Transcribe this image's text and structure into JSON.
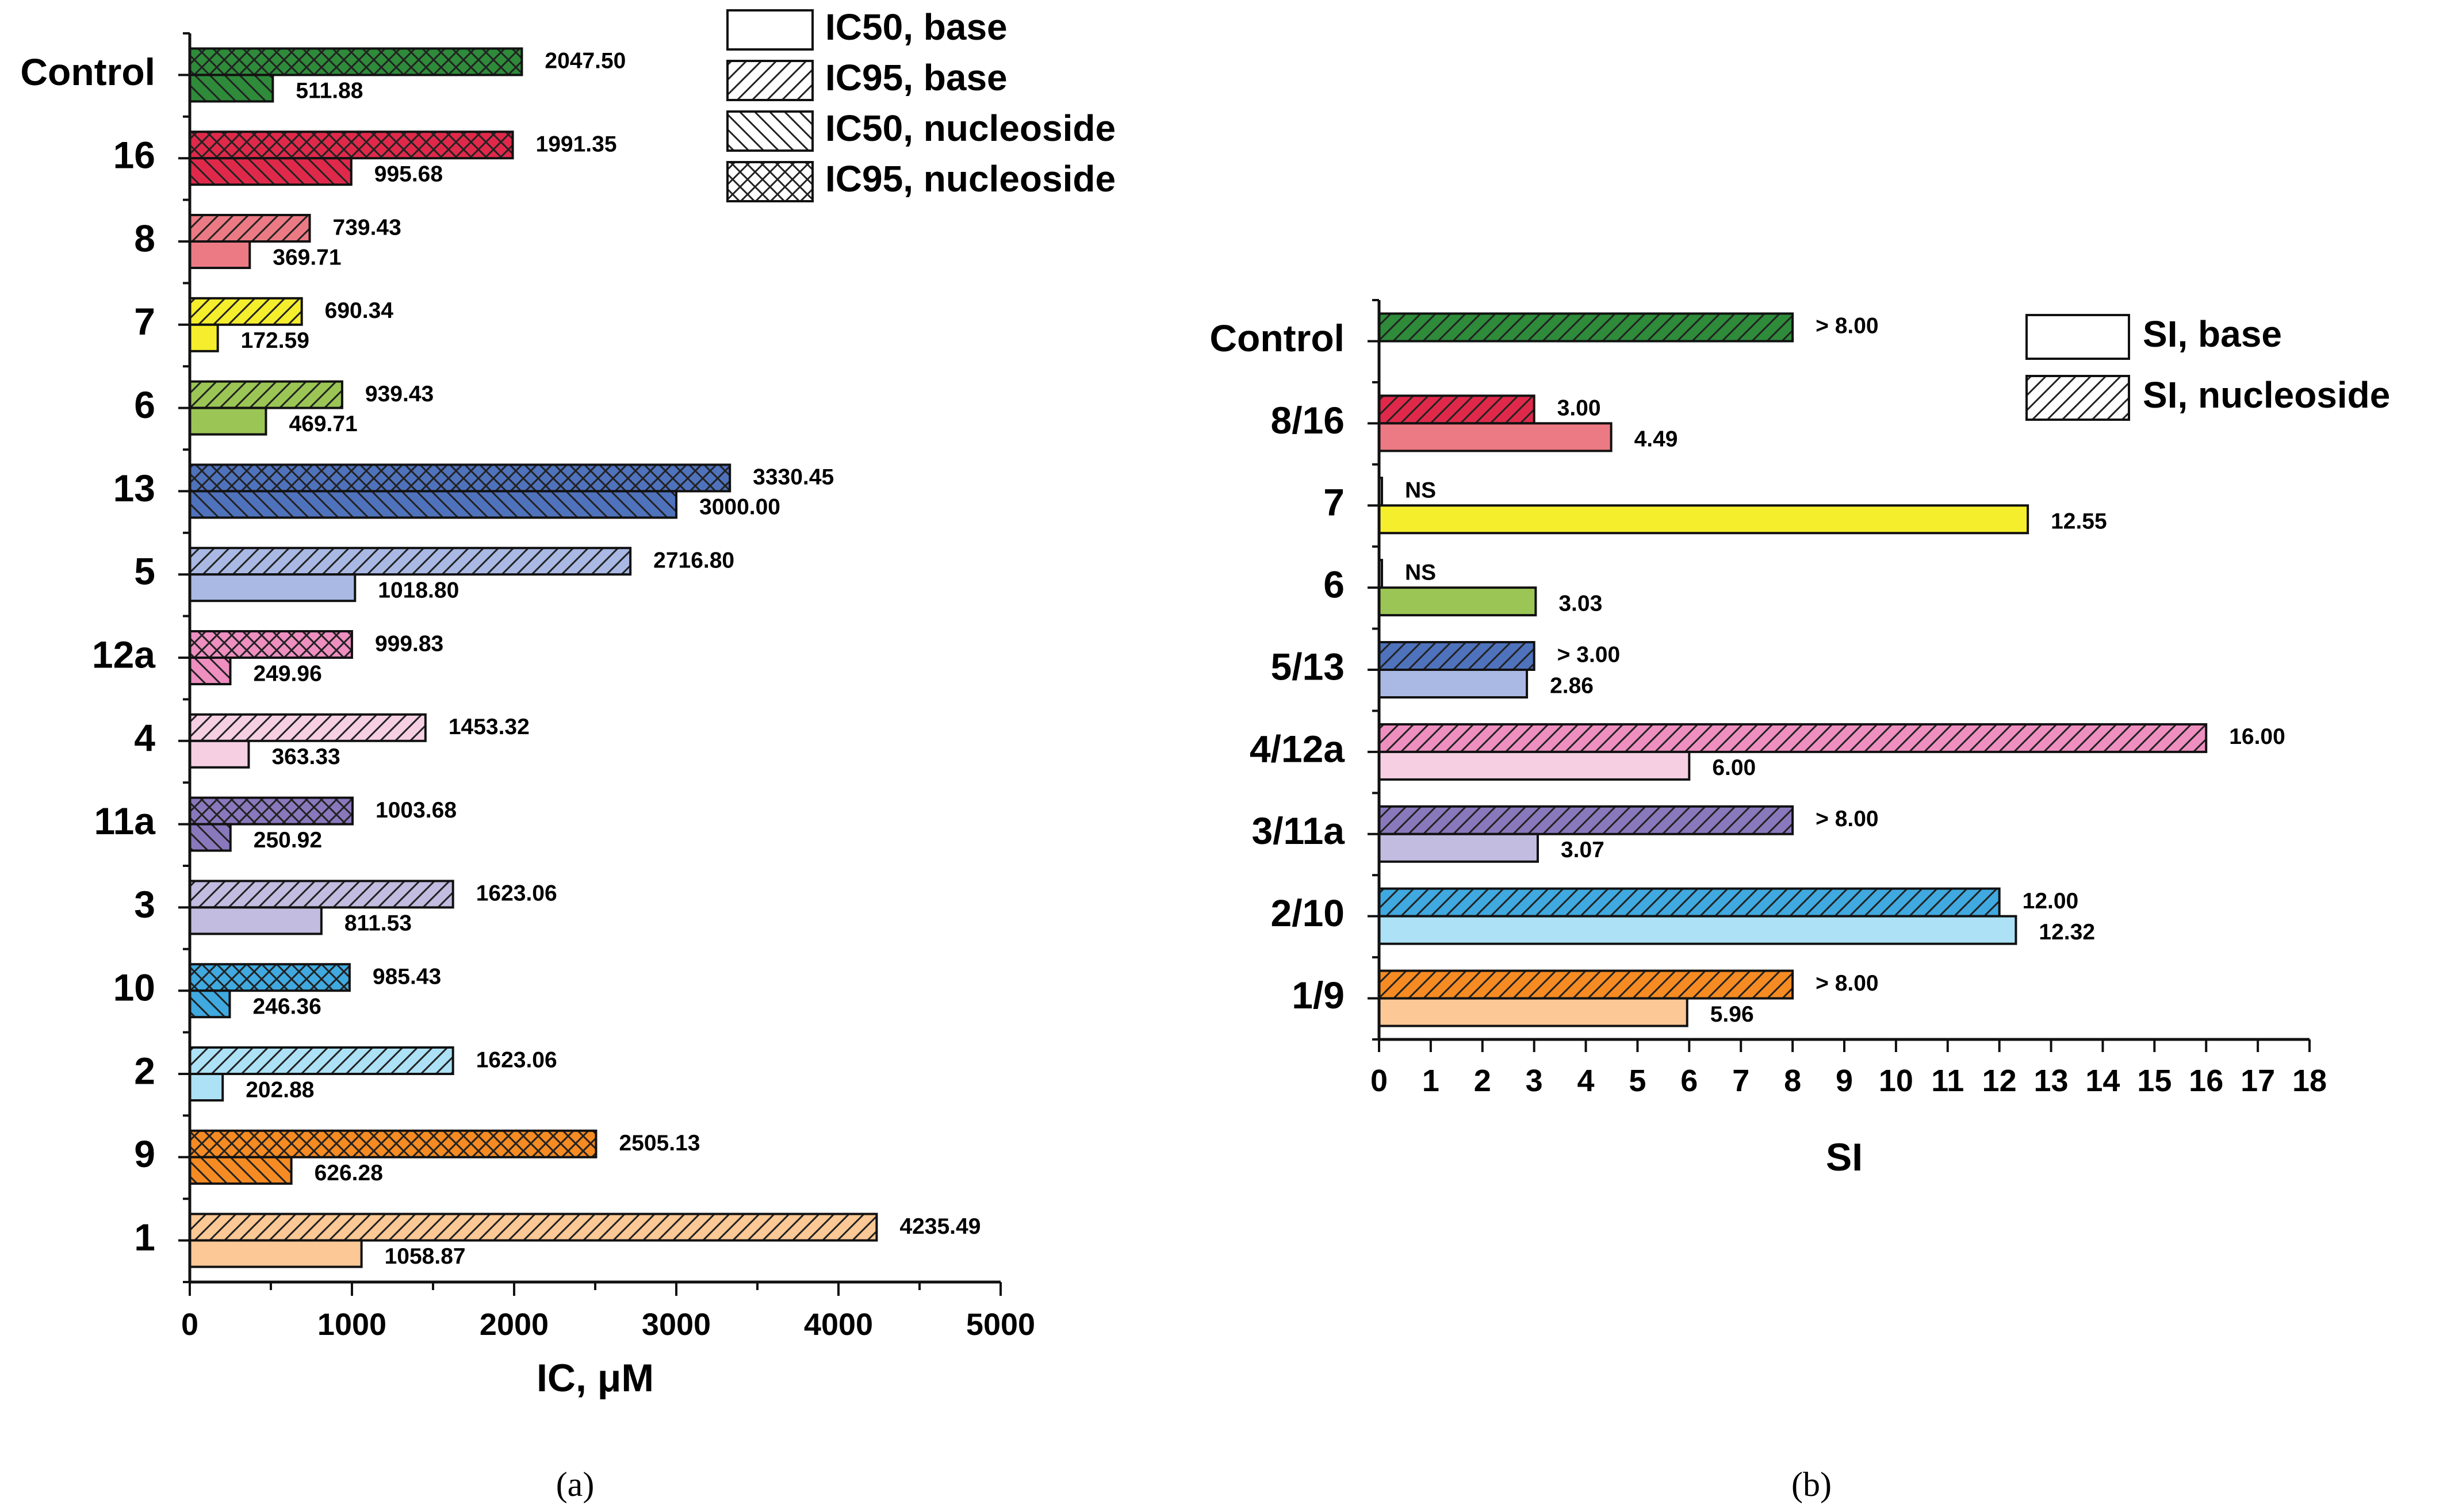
{
  "chart_data": [
    {
      "type": "bar",
      "orientation": "horizontal",
      "panel_label": "a",
      "xlabel": "IC, μM",
      "xlim": [
        0,
        5000
      ],
      "xticks": [
        0,
        1000,
        2000,
        3000,
        4000,
        5000
      ],
      "legend_position": "top-right",
      "legend": [
        {
          "label": "IC50, base",
          "pattern": "none"
        },
        {
          "label": "IC95, base",
          "pattern": "hatch"
        },
        {
          "label": "IC50, nucleoside",
          "pattern": "backhatch"
        },
        {
          "label": "IC95, nucleoside",
          "pattern": "cross"
        }
      ],
      "rows": [
        {
          "category": "Control",
          "color": "#2e8b3a",
          "type": "nucleoside",
          "ic95": 2047.5,
          "ic95_label": "2047.50",
          "ic50": 511.88,
          "ic50_label": "511.88"
        },
        {
          "category": "16",
          "color": "#e0294a",
          "type": "nucleoside",
          "ic95": 1991.35,
          "ic95_label": "1991.35",
          "ic50": 995.68,
          "ic50_label": "995.68"
        },
        {
          "category": "8",
          "color": "#ec7a84",
          "type": "base",
          "ic95": 739.43,
          "ic95_label": "739.43",
          "ic50": 369.71,
          "ic50_label": "369.71"
        },
        {
          "category": "7",
          "color": "#f5ee2c",
          "type": "base",
          "ic95": 690.34,
          "ic95_label": "690.34",
          "ic50": 172.59,
          "ic50_label": "172.59"
        },
        {
          "category": "6",
          "color": "#9bc655",
          "type": "base",
          "ic95": 939.43,
          "ic95_label": "939.43",
          "ic50": 469.71,
          "ic50_label": "469.71"
        },
        {
          "category": "13",
          "color": "#4f72bd",
          "type": "nucleoside",
          "ic95": 3330.45,
          "ic95_label": "3330.45",
          "ic50": 3000.0,
          "ic50_label": "3000.00"
        },
        {
          "category": "5",
          "color": "#a9b9e4",
          "type": "base",
          "ic95": 2716.8,
          "ic95_label": "2716.80",
          "ic50": 1018.8,
          "ic50_label": "1018.80"
        },
        {
          "category": "12a",
          "color": "#ee8fc0",
          "type": "nucleoside",
          "ic95": 999.83,
          "ic95_label": "999.83",
          "ic50": 249.96,
          "ic50_label": "249.96"
        },
        {
          "category": "4",
          "color": "#f6cfe3",
          "type": "base",
          "ic95": 1453.32,
          "ic95_label": "1453.32",
          "ic50": 363.33,
          "ic50_label": "363.33"
        },
        {
          "category": "11a",
          "color": "#8a78bd",
          "type": "nucleoside",
          "ic95": 1003.68,
          "ic95_label": "1003.68",
          "ic50": 250.92,
          "ic50_label": "250.92"
        },
        {
          "category": "3",
          "color": "#c2bce0",
          "type": "base",
          "ic95": 1623.06,
          "ic95_label": "1623.06",
          "ic50": 811.53,
          "ic50_label": "811.53"
        },
        {
          "category": "10",
          "color": "#3fa9e0",
          "type": "nucleoside",
          "ic95": 985.43,
          "ic95_label": "985.43",
          "ic50": 246.36,
          "ic50_label": "246.36"
        },
        {
          "category": "2",
          "color": "#ace1f6",
          "type": "base",
          "ic95": 1623.06,
          "ic95_label": "1623.06",
          "ic50": 202.88,
          "ic50_label": "202.88"
        },
        {
          "category": "9",
          "color": "#f58b22",
          "type": "nucleoside",
          "ic95": 2505.13,
          "ic95_label": "2505.13",
          "ic50": 626.28,
          "ic50_label": "626.28"
        },
        {
          "category": "1",
          "color": "#fcc895",
          "type": "base",
          "ic95": 4235.49,
          "ic95_label": "4235.49",
          "ic50": 1058.87,
          "ic50_label": "1058.87"
        }
      ]
    },
    {
      "type": "bar",
      "orientation": "horizontal",
      "panel_label": "b",
      "xlabel": "SI",
      "xlim": [
        0,
        18
      ],
      "xticks": [
        0,
        1,
        2,
        3,
        4,
        5,
        6,
        7,
        8,
        9,
        10,
        11,
        12,
        13,
        14,
        15,
        16,
        17,
        18
      ],
      "legend_position": "top-right",
      "legend": [
        {
          "label": "SI, base",
          "pattern": "none"
        },
        {
          "label": "SI, nucleoside",
          "pattern": "hatch"
        }
      ],
      "rows": [
        {
          "category": "Control",
          "nuc_color": "#2e8b3a",
          "base_color": null,
          "si_nucleoside": 8.0,
          "si_nucleoside_label": "> 8.00",
          "si_base": null,
          "si_base_label": null
        },
        {
          "category": "8/16",
          "nuc_color": "#e0294a",
          "base_color": "#ec7a84",
          "si_nucleoside": 3.0,
          "si_nucleoside_label": "3.00",
          "si_base": 4.49,
          "si_base_label": "4.49"
        },
        {
          "category": "7",
          "nuc_color": "#ffffff",
          "base_color": "#f5ee2c",
          "si_nucleoside": 0,
          "si_nucleoside_label": "NS",
          "si_base": 12.55,
          "si_base_label": "12.55"
        },
        {
          "category": "6",
          "nuc_color": "#ffffff",
          "base_color": "#9bc655",
          "si_nucleoside": 0,
          "si_nucleoside_label": "NS",
          "si_base": 3.03,
          "si_base_label": "3.03"
        },
        {
          "category": "5/13",
          "nuc_color": "#4f72bd",
          "base_color": "#a9b9e4",
          "si_nucleoside": 3.0,
          "si_nucleoside_label": "> 3.00",
          "si_base": 2.86,
          "si_base_label": "2.86"
        },
        {
          "category": "4/12a",
          "nuc_color": "#ee8fc0",
          "base_color": "#f6cfe3",
          "si_nucleoside": 16.0,
          "si_nucleoside_label": "16.00",
          "si_base": 6.0,
          "si_base_label": "6.00"
        },
        {
          "category": "3/11a",
          "nuc_color": "#8a78bd",
          "base_color": "#c2bce0",
          "si_nucleoside": 8.0,
          "si_nucleoside_label": "> 8.00",
          "si_base": 3.07,
          "si_base_label": "3.07"
        },
        {
          "category": "2/10",
          "nuc_color": "#3fa9e0",
          "base_color": "#ace1f6",
          "si_nucleoside": 12.0,
          "si_nucleoside_label": "12.00",
          "si_base": 12.32,
          "si_base_label": "12.32"
        },
        {
          "category": "1/9",
          "nuc_color": "#f58b22",
          "base_color": "#fcc895",
          "si_nucleoside": 8.0,
          "si_nucleoside_label": "> 8.00",
          "si_base": 5.96,
          "si_base_label": "5.96"
        }
      ]
    }
  ],
  "captions": {
    "a": "(a)",
    "b": "(b)"
  }
}
